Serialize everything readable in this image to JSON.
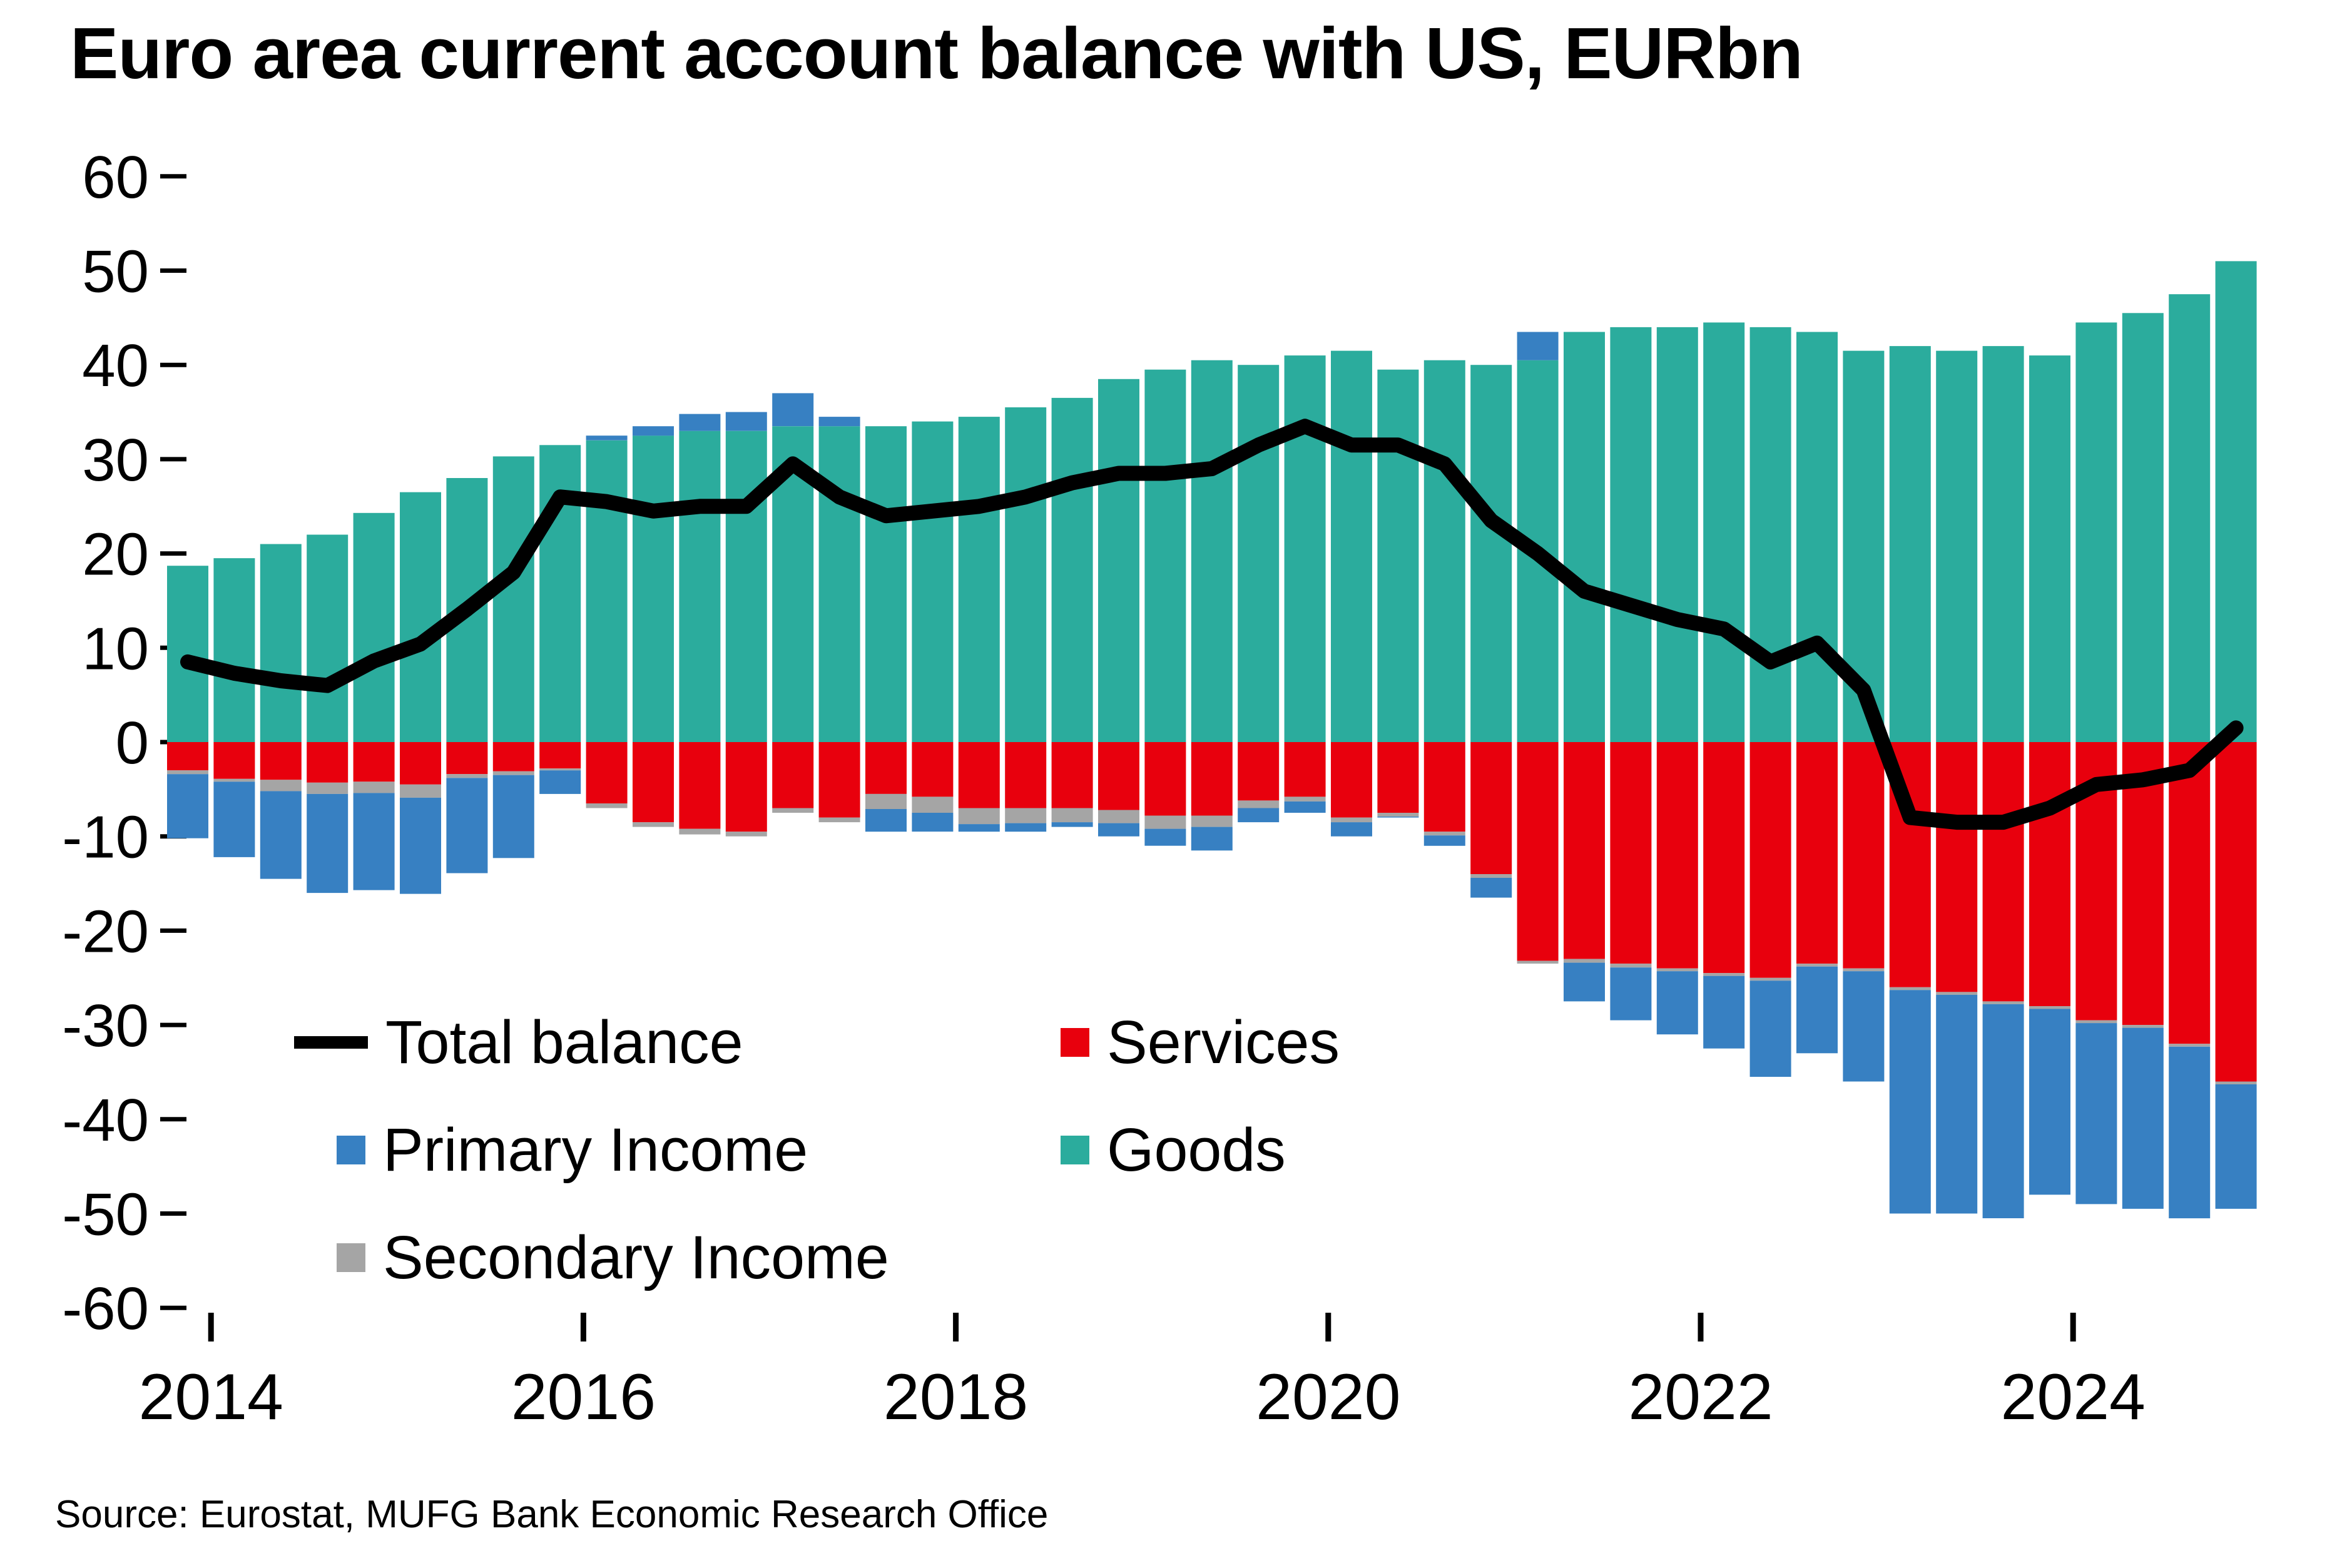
{
  "title": "Euro area current account balance with US, EURbn",
  "source": "Source: Eurostat, MUFG Bank Economic Research Office",
  "colors": {
    "goods": "#2BAC9D",
    "services": "#E8000D",
    "primary_income": "#3780C2",
    "secondary_income": "#A5A5A5",
    "total_balance": "#000000",
    "background": "#FFFFFF"
  },
  "legend": {
    "items": [
      {
        "label": "Total balance",
        "swatch": "line",
        "color": "#000000"
      },
      {
        "label": "Services",
        "swatch": "square",
        "color": "#E8000D"
      },
      {
        "label": "Primary Income",
        "swatch": "square",
        "color": "#3780C2"
      },
      {
        "label": "Goods",
        "swatch": "square",
        "color": "#2BAC9D"
      },
      {
        "label": "Secondary Income",
        "swatch": "square",
        "color": "#A5A5A5"
      }
    ]
  },
  "chart_data": {
    "type": "bar",
    "subtype": "stacked-bars-with-line",
    "title": "Euro area current account balance with US, EURbn",
    "xlabel": "",
    "ylabel": "EURbn",
    "ylim": [
      -60,
      60
    ],
    "ytick_step": 10,
    "ytick_labels": [
      "60",
      "50",
      "40",
      "30",
      "20",
      "10",
      "0",
      "-10",
      "-20",
      "-30",
      "-40",
      "-50",
      "-60"
    ],
    "x_tick_labels": [
      "2014",
      "2016",
      "2018",
      "2020",
      "2022",
      "2024"
    ],
    "grid": false,
    "legend_position": "inside lower-left",
    "categories": [
      "2013 Q4",
      "2014 Q1",
      "2014 Q2",
      "2014 Q3",
      "2014 Q4",
      "2015 Q1",
      "2015 Q2",
      "2015 Q3",
      "2015 Q4",
      "2016 Q1",
      "2016 Q2",
      "2016 Q3",
      "2016 Q4",
      "2017 Q1",
      "2017 Q2",
      "2017 Q3",
      "2017 Q4",
      "2018 Q1",
      "2018 Q2",
      "2018 Q3",
      "2018 Q4",
      "2019 Q1",
      "2019 Q2",
      "2019 Q3",
      "2019 Q4",
      "2020 Q1",
      "2020 Q2",
      "2020 Q3",
      "2020 Q4",
      "2021 Q1",
      "2021 Q2",
      "2021 Q3",
      "2021 Q4",
      "2022 Q1",
      "2022 Q2",
      "2022 Q3",
      "2022 Q4",
      "2023 Q1",
      "2023 Q2",
      "2023 Q3",
      "2023 Q4",
      "2024 Q1",
      "2024 Q2",
      "2024 Q3",
      "2024 Q4"
    ],
    "series": [
      {
        "name": "Goods",
        "type": "bar",
        "values": [
          18.7,
          19.5,
          21.0,
          22.0,
          24.3,
          26.5,
          28.0,
          30.3,
          31.5,
          32.0,
          32.5,
          33.0,
          33.0,
          33.5,
          33.5,
          33.5,
          34.0,
          34.5,
          35.5,
          36.5,
          38.5,
          39.5,
          40.5,
          40.0,
          41.0,
          41.5,
          39.5,
          40.5,
          40.0,
          40.5,
          43.5,
          44.0,
          44.0,
          44.5,
          44.0,
          43.5,
          41.5,
          42.0,
          41.5,
          42.0,
          41.0,
          44.5,
          45.5,
          47.5,
          51.0
        ]
      },
      {
        "name": "Services",
        "type": "bar",
        "values": [
          -3.0,
          -3.9,
          -4.0,
          -4.3,
          -4.2,
          -4.5,
          -3.4,
          -3.1,
          -2.8,
          -6.5,
          -8.5,
          -9.2,
          -9.5,
          -7.0,
          -8.0,
          -5.5,
          -5.8,
          -7.0,
          -7.0,
          -7.0,
          -7.2,
          -7.8,
          -7.8,
          -6.2,
          -5.8,
          -8.0,
          -7.5,
          -9.5,
          -14.0,
          -23.2,
          -23.0,
          -23.5,
          -24.0,
          -24.5,
          -25.0,
          -23.5,
          -24.0,
          -26.0,
          -26.5,
          -27.5,
          -28.0,
          -29.5,
          -30.0,
          -32.0,
          -36.0
        ]
      },
      {
        "name": "Secondary Income",
        "type": "bar",
        "values": [
          -0.4,
          -0.3,
          -1.2,
          -1.2,
          -1.2,
          -1.4,
          -0.4,
          -0.4,
          -0.2,
          -0.5,
          -0.5,
          -0.6,
          -0.5,
          -0.5,
          -0.5,
          -1.6,
          -1.7,
          -1.7,
          -1.6,
          -1.5,
          -1.4,
          -1.4,
          -1.2,
          -0.8,
          -0.5,
          -0.5,
          -0.4,
          -0.4,
          -0.4,
          -0.3,
          -0.4,
          -0.4,
          -0.3,
          -0.3,
          -0.3,
          -0.3,
          -0.3,
          -0.3,
          -0.3,
          -0.3,
          -0.3,
          -0.3,
          -0.3,
          -0.3,
          -0.3
        ]
      },
      {
        "name": "Primary Income",
        "type": "bar",
        "values": [
          -6.8,
          -8.0,
          -9.3,
          -10.5,
          -10.3,
          -10.2,
          -10.1,
          -8.8,
          -2.5,
          0.5,
          1.0,
          1.8,
          2.0,
          3.5,
          1.0,
          -2.4,
          -2.0,
          -0.8,
          -0.9,
          -0.5,
          -1.4,
          -1.8,
          -2.5,
          -1.5,
          -1.2,
          -1.5,
          -0.1,
          -1.1,
          -2.1,
          3.0,
          -4.1,
          -5.6,
          -6.7,
          -7.7,
          -10.2,
          -9.2,
          -11.7,
          -23.7,
          -23.2,
          -22.7,
          -19.7,
          -19.2,
          -19.2,
          -18.2,
          -13.2
        ]
      },
      {
        "name": "Total balance",
        "type": "line",
        "values": [
          8.5,
          7.3,
          6.5,
          6.0,
          8.6,
          10.4,
          14.1,
          18.0,
          26.0,
          25.5,
          24.5,
          25.0,
          25.0,
          29.5,
          26.0,
          24.0,
          24.5,
          25.0,
          26.0,
          27.5,
          28.5,
          28.5,
          29.0,
          31.5,
          33.5,
          31.5,
          31.5,
          29.5,
          23.5,
          20.0,
          16.0,
          14.5,
          13.0,
          12.0,
          8.5,
          10.5,
          5.5,
          -8.0,
          -8.5,
          -8.5,
          -7.0,
          -4.5,
          -4.0,
          -3.0,
          1.5
        ]
      }
    ]
  }
}
